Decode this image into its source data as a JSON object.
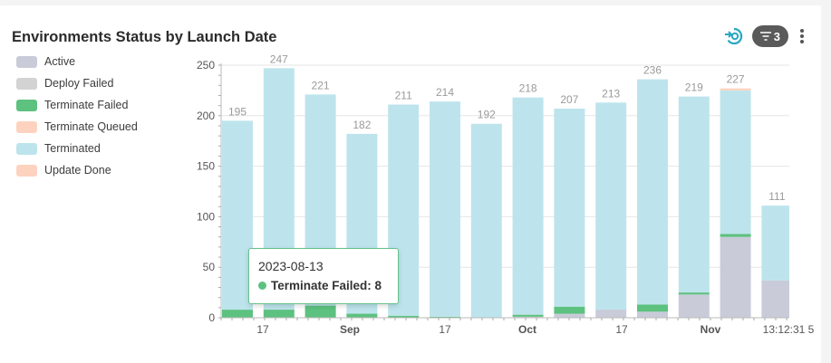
{
  "header": {
    "title": "Environments Status by Launch Date",
    "filter_count": "3"
  },
  "icons": {
    "refresh": "refresh-icon",
    "filter": "filter-icon",
    "more": "more-vertical-icon"
  },
  "colors": {
    "Active": "#c9cbd9",
    "Deploy Failed": "#d3d3d3",
    "Terminate Failed": "#5dc17f",
    "Terminate Queued": "#fdd3c0",
    "Terminated": "#bde4ec",
    "Update Done": "#fdd3c0"
  },
  "tooltip": {
    "date": "2023-08-13",
    "label": "Terminate Failed: 8",
    "color": "#5dc17f"
  },
  "chart_data": {
    "type": "bar",
    "stacked": true,
    "title": "Environments Status by Launch Date",
    "legend": [
      "Active",
      "Deploy Failed",
      "Terminate Failed",
      "Terminate Queued",
      "Terminated",
      "Update Done"
    ],
    "legend_position": "left",
    "grid": true,
    "ylim": [
      0,
      250
    ],
    "yticks": [
      0,
      50,
      100,
      150,
      200,
      250
    ],
    "xticks": [
      {
        "label": "17",
        "bold": false,
        "at": 1
      },
      {
        "label": "Sep",
        "bold": true,
        "at": 3
      },
      {
        "label": "17",
        "bold": false,
        "at": 5
      },
      {
        "label": "Oct",
        "bold": true,
        "at": 7.7
      },
      {
        "label": "17",
        "bold": false,
        "at": 10
      },
      {
        "label": "Nov",
        "bold": true,
        "at": 12.3
      },
      {
        "label": "13:12:31 5",
        "bold": false,
        "at": 14
      }
    ],
    "bars": [
      {
        "total": "",
        "Active": 0,
        "Terminate Failed": 8,
        "Terminated": 187
      },
      {
        "total": "247",
        "Active": 0,
        "Terminate Failed": 8,
        "Terminated": 239
      },
      {
        "total": "221",
        "Active": 0,
        "Terminate Failed": 12,
        "Terminated": 209
      },
      {
        "total": "182",
        "Active": 0,
        "Terminate Failed": 4,
        "Terminated": 178
      },
      {
        "total": "211",
        "Active": 0,
        "Terminate Failed": 2,
        "Terminated": 209
      },
      {
        "total": "214",
        "Active": 0,
        "Terminate Failed": 1,
        "Terminated": 213
      },
      {
        "total": "192",
        "Active": 0,
        "Terminate Failed": 0,
        "Terminated": 192
      },
      {
        "total": "218",
        "Active": 1,
        "Terminate Failed": 2,
        "Terminated": 215
      },
      {
        "total": "207",
        "Active": 4,
        "Terminate Failed": 7,
        "Terminated": 196
      },
      {
        "total": "213",
        "Active": 8,
        "Terminate Failed": 0,
        "Terminated": 205
      },
      {
        "total": "236",
        "Active": 6,
        "Terminate Failed": 7,
        "Terminated": 223
      },
      {
        "total": "219",
        "Active": 23,
        "Terminate Failed": 2,
        "Terminated": 194
      },
      {
        "total": "227",
        "Active": 80,
        "Terminate Failed": 3,
        "Terminated": 142,
        "Update Done": 2
      },
      {
        "total": "111",
        "Active": 37,
        "Terminate Failed": 0,
        "Terminated": 74
      }
    ],
    "label_195": "195"
  }
}
